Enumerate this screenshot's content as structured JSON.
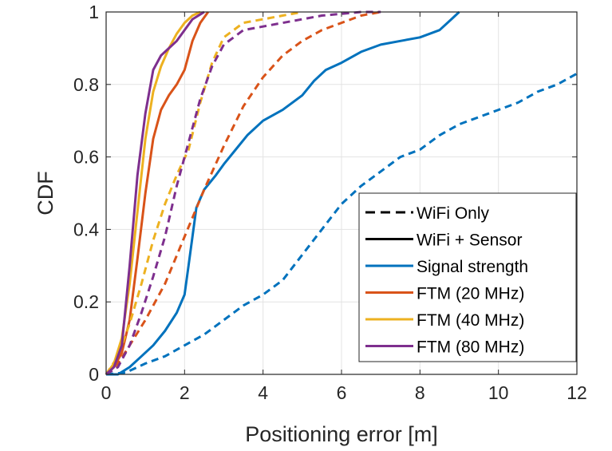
{
  "chart_data": {
    "type": "line",
    "xlabel": "Positioning error [m]",
    "ylabel": "CDF",
    "xlim": [
      0,
      12
    ],
    "ylim": [
      0,
      1
    ],
    "xticks": [
      0,
      2,
      4,
      6,
      8,
      10,
      12
    ],
    "yticks": [
      0,
      0.2,
      0.4,
      0.6,
      0.8,
      1
    ],
    "xtick_labels": [
      "0",
      "2",
      "4",
      "6",
      "8",
      "10",
      "12"
    ],
    "ytick_labels": [
      "0",
      "0.2",
      "0.4",
      "0.6",
      "0.8",
      "1"
    ],
    "grid": true,
    "legend_position": "bottom-right",
    "legend": [
      {
        "label": "WiFi Only",
        "style": "dashed",
        "color": "#000000"
      },
      {
        "label": "WiFi + Sensor",
        "style": "solid",
        "color": "#000000"
      },
      {
        "label": "Signal strength",
        "style": "solid",
        "color": "#0072BD"
      },
      {
        "label": "FTM (20 MHz)",
        "style": "solid",
        "color": "#D95319"
      },
      {
        "label": "FTM (40 MHz)",
        "style": "solid",
        "color": "#EDB120"
      },
      {
        "label": "FTM (80 MHz)",
        "style": "solid",
        "color": "#7E2F8E"
      }
    ],
    "series": [
      {
        "method": "Signal strength",
        "mode": "WiFi Only",
        "color": "#0072BD",
        "dash": true,
        "x": [
          0,
          0.5,
          1.0,
          1.5,
          2.0,
          2.5,
          3.0,
          3.5,
          4.0,
          4.5,
          5.0,
          5.5,
          6.0,
          6.5,
          7.0,
          7.5,
          8.0,
          8.5,
          9.0,
          9.5,
          10.0,
          10.5,
          11.0,
          11.5,
          12.0
        ],
        "y": [
          0,
          0.005,
          0.03,
          0.05,
          0.08,
          0.11,
          0.15,
          0.19,
          0.22,
          0.26,
          0.33,
          0.4,
          0.47,
          0.52,
          0.56,
          0.6,
          0.62,
          0.66,
          0.69,
          0.71,
          0.73,
          0.75,
          0.78,
          0.8,
          0.83
        ]
      },
      {
        "method": "Signal strength",
        "mode": "WiFi + Sensor",
        "color": "#0072BD",
        "dash": false,
        "x": [
          0,
          0.3,
          0.6,
          0.9,
          1.2,
          1.5,
          1.8,
          2.0,
          2.1,
          2.2,
          2.3,
          2.5,
          2.8,
          3.0,
          3.3,
          3.6,
          4.0,
          4.5,
          5.0,
          5.3,
          5.6,
          6.0,
          6.5,
          7.0,
          7.5,
          8.0,
          8.5,
          8.8,
          9.0
        ],
        "y": [
          0,
          0.0,
          0.02,
          0.05,
          0.08,
          0.12,
          0.17,
          0.22,
          0.3,
          0.38,
          0.46,
          0.51,
          0.55,
          0.58,
          0.62,
          0.66,
          0.7,
          0.73,
          0.77,
          0.81,
          0.84,
          0.86,
          0.89,
          0.91,
          0.92,
          0.93,
          0.95,
          0.98,
          1.0
        ]
      },
      {
        "method": "FTM (20 MHz)",
        "mode": "WiFi Only",
        "color": "#D95319",
        "dash": true,
        "x": [
          0,
          0.3,
          0.6,
          1.0,
          1.5,
          2.0,
          2.5,
          3.0,
          3.5,
          4.0,
          4.5,
          5.0,
          5.5,
          6.0,
          6.5,
          7.0
        ],
        "y": [
          0,
          0.03,
          0.08,
          0.15,
          0.25,
          0.38,
          0.51,
          0.63,
          0.74,
          0.82,
          0.88,
          0.92,
          0.95,
          0.97,
          0.99,
          1.0
        ]
      },
      {
        "method": "FTM (20 MHz)",
        "mode": "WiFi + Sensor",
        "color": "#D95319",
        "dash": false,
        "x": [
          0,
          0.2,
          0.4,
          0.6,
          0.8,
          1.0,
          1.2,
          1.4,
          1.6,
          1.8,
          2.0,
          2.2,
          2.4,
          2.6
        ],
        "y": [
          0,
          0.02,
          0.06,
          0.15,
          0.32,
          0.5,
          0.65,
          0.73,
          0.77,
          0.8,
          0.84,
          0.92,
          0.97,
          1.0
        ]
      },
      {
        "method": "FTM (40 MHz)",
        "mode": "WiFi Only",
        "color": "#EDB120",
        "dash": true,
        "x": [
          0,
          0.3,
          0.6,
          0.9,
          1.2,
          1.5,
          1.8,
          2.1,
          2.4,
          2.7,
          3.0,
          3.5,
          4.0,
          4.5,
          5.0
        ],
        "y": [
          0,
          0.05,
          0.14,
          0.25,
          0.37,
          0.47,
          0.55,
          0.62,
          0.75,
          0.86,
          0.93,
          0.97,
          0.98,
          0.99,
          1.0
        ]
      },
      {
        "method": "FTM (40 MHz)",
        "mode": "WiFi + Sensor",
        "color": "#EDB120",
        "dash": false,
        "x": [
          0,
          0.2,
          0.4,
          0.6,
          0.8,
          1.0,
          1.2,
          1.4,
          1.6,
          1.8,
          2.0,
          2.2,
          2.4
        ],
        "y": [
          0,
          0.03,
          0.1,
          0.25,
          0.45,
          0.65,
          0.78,
          0.85,
          0.9,
          0.94,
          0.97,
          0.99,
          1.0
        ]
      },
      {
        "method": "FTM (80 MHz)",
        "mode": "WiFi Only",
        "color": "#7E2F8E",
        "dash": true,
        "x": [
          0,
          0.3,
          0.6,
          0.9,
          1.2,
          1.5,
          1.8,
          2.1,
          2.4,
          2.7,
          3.0,
          3.5,
          4.0,
          4.5,
          5.0,
          5.5,
          6.0,
          6.5,
          7.0
        ],
        "y": [
          0,
          0.02,
          0.08,
          0.17,
          0.27,
          0.38,
          0.52,
          0.64,
          0.76,
          0.85,
          0.91,
          0.95,
          0.96,
          0.97,
          0.98,
          0.99,
          0.995,
          1.0,
          1.0
        ]
      },
      {
        "method": "FTM (80 MHz)",
        "mode": "WiFi + Sensor",
        "color": "#7E2F8E",
        "dash": false,
        "x": [
          0,
          0.2,
          0.4,
          0.6,
          0.8,
          1.0,
          1.2,
          1.4,
          1.6,
          1.8,
          2.0,
          2.2,
          2.5
        ],
        "y": [
          0,
          0.02,
          0.08,
          0.3,
          0.55,
          0.72,
          0.84,
          0.88,
          0.9,
          0.92,
          0.95,
          0.98,
          1.0
        ]
      }
    ]
  }
}
